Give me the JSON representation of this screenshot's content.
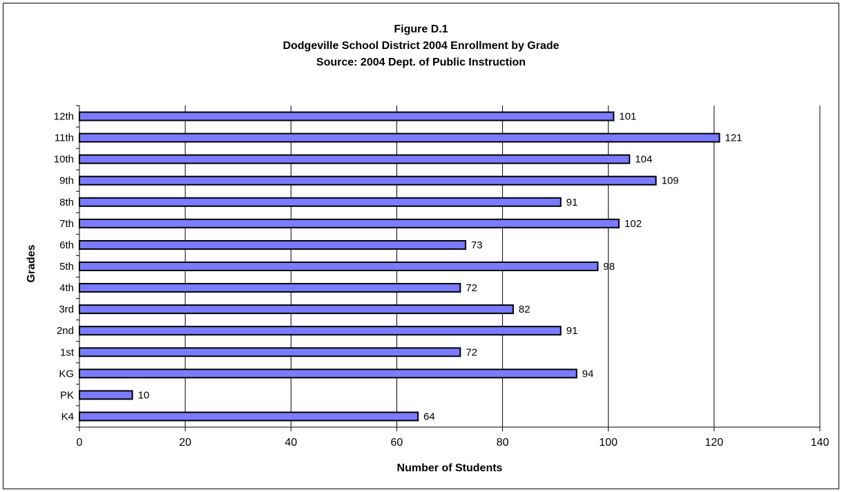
{
  "chart_data": {
    "type": "bar",
    "orientation": "horizontal",
    "title": [
      "Figure D.1",
      "Dodgeville School District 2004 Enrollment by Grade",
      "Source:  2004 Dept. of Public Instruction"
    ],
    "xlabel": "Number of Students",
    "ylabel": "Grades",
    "categories": [
      "12th",
      "11th",
      "10th",
      "9th",
      "8th",
      "7th",
      "6th",
      "5th",
      "4th",
      "3rd",
      "2nd",
      "1st",
      "KG",
      "PK",
      "K4"
    ],
    "values": [
      101,
      121,
      104,
      109,
      91,
      102,
      73,
      98,
      72,
      82,
      91,
      72,
      94,
      10,
      64
    ],
    "xlim": [
      0,
      140
    ],
    "xticks": [
      "0",
      "20",
      "40",
      "60",
      "80",
      "100",
      "120",
      "140"
    ],
    "grid": "vertical",
    "legend": "none",
    "data_labels": true,
    "colors": {
      "bar_fill": "#7B7BFF",
      "bar_stroke": "#000000",
      "grid": "#000000"
    }
  }
}
